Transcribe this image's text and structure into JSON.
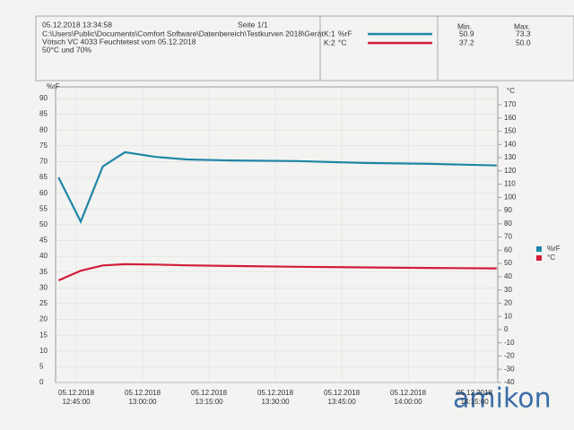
{
  "header": {
    "timestamp": "05.12.2018 13:34:58",
    "page": "Seite 1/1",
    "path": "C:\\Users\\Public\\Documents\\Comfort Software\\Datenbereich\\Testkurven 2018\\Gerät",
    "title": "Vötsch VC 4033 Feuchtetest vom 05.12.2018",
    "subtitle": "50°C und 70%"
  },
  "summary_table": {
    "columns": [
      "Min.",
      "Max."
    ],
    "rows": [
      {
        "channel": "K:1",
        "name": "%rF",
        "cells": [
          "50.9",
          "73.3"
        ]
      },
      {
        "channel": "K:2",
        "name": "°C",
        "cells": [
          "37.2",
          "50.0"
        ]
      }
    ]
  },
  "watermark": "amikon",
  "chart_data": {
    "type": "line",
    "ylabel": "%rF",
    "y2label": "°C",
    "xlim": [
      "05.12.2018 12:40:20",
      "05.12.2018 14:20:15"
    ],
    "xticks": [
      {
        "value": "05.12.2018 12:45:00",
        "label": [
          "05.12.2018",
          "12:45:00"
        ]
      },
      {
        "value": "05.12.2018 13:00:00",
        "label": [
          "05.12.2018",
          "13:00:00"
        ]
      },
      {
        "value": "05.12.2018 13:15:00",
        "label": [
          "05.12.2018",
          "13:15:00"
        ]
      },
      {
        "value": "05.12.2018 13:30:00",
        "label": [
          "05.12.2018",
          "13:30:00"
        ]
      },
      {
        "value": "05.12.2018 13:45:00",
        "label": [
          "05.12.2018",
          "13:45:00"
        ]
      },
      {
        "value": "05.12.2018 14:00:00",
        "label": [
          "05.12.2018",
          "14:00:00"
        ]
      },
      {
        "value": "05.12.2018 14:15:00",
        "label": [
          "05.12.2018",
          "14:15:00"
        ]
      }
    ],
    "ylim": [
      0,
      93.7
    ],
    "yticks": [
      0,
      5,
      10,
      15,
      20,
      25,
      30,
      35,
      40,
      45,
      50,
      55,
      60,
      65,
      70,
      75,
      80,
      85,
      90
    ],
    "y2lim": [
      -40,
      183.5
    ],
    "y2ticks": [
      -40,
      -30,
      -20,
      -10,
      0,
      10,
      20,
      30,
      40,
      50,
      60,
      70,
      80,
      90,
      100,
      110,
      120,
      130,
      140,
      150,
      160,
      170
    ],
    "grid": true,
    "x": [
      "05.12.2018 12:41:00",
      "05.12.2018 12:46:00",
      "05.12.2018 12:51:00",
      "05.12.2018 12:56:00",
      "05.12.2018 13:03:00",
      "05.12.2018 13:10:00",
      "05.12.2018 13:20:00",
      "05.12.2018 13:35:00",
      "05.12.2018 13:50:00",
      "05.12.2018 14:05:00",
      "05.12.2018 14:20:00"
    ],
    "series": [
      {
        "name": "%rF",
        "color": "#1e86a6",
        "values": [
          65,
          51,
          68.5,
          73,
          71.5,
          70.7,
          70.4,
          70.2,
          69.6,
          69.3,
          68.8
        ]
      },
      {
        "name": "°C",
        "color": "#d21d3a",
        "axis": "y2",
        "values": [
          37.2,
          44.5,
          48.5,
          49.5,
          49.2,
          48.6,
          48.1,
          47.5,
          47.0,
          46.6,
          46.3
        ]
      }
    ]
  }
}
